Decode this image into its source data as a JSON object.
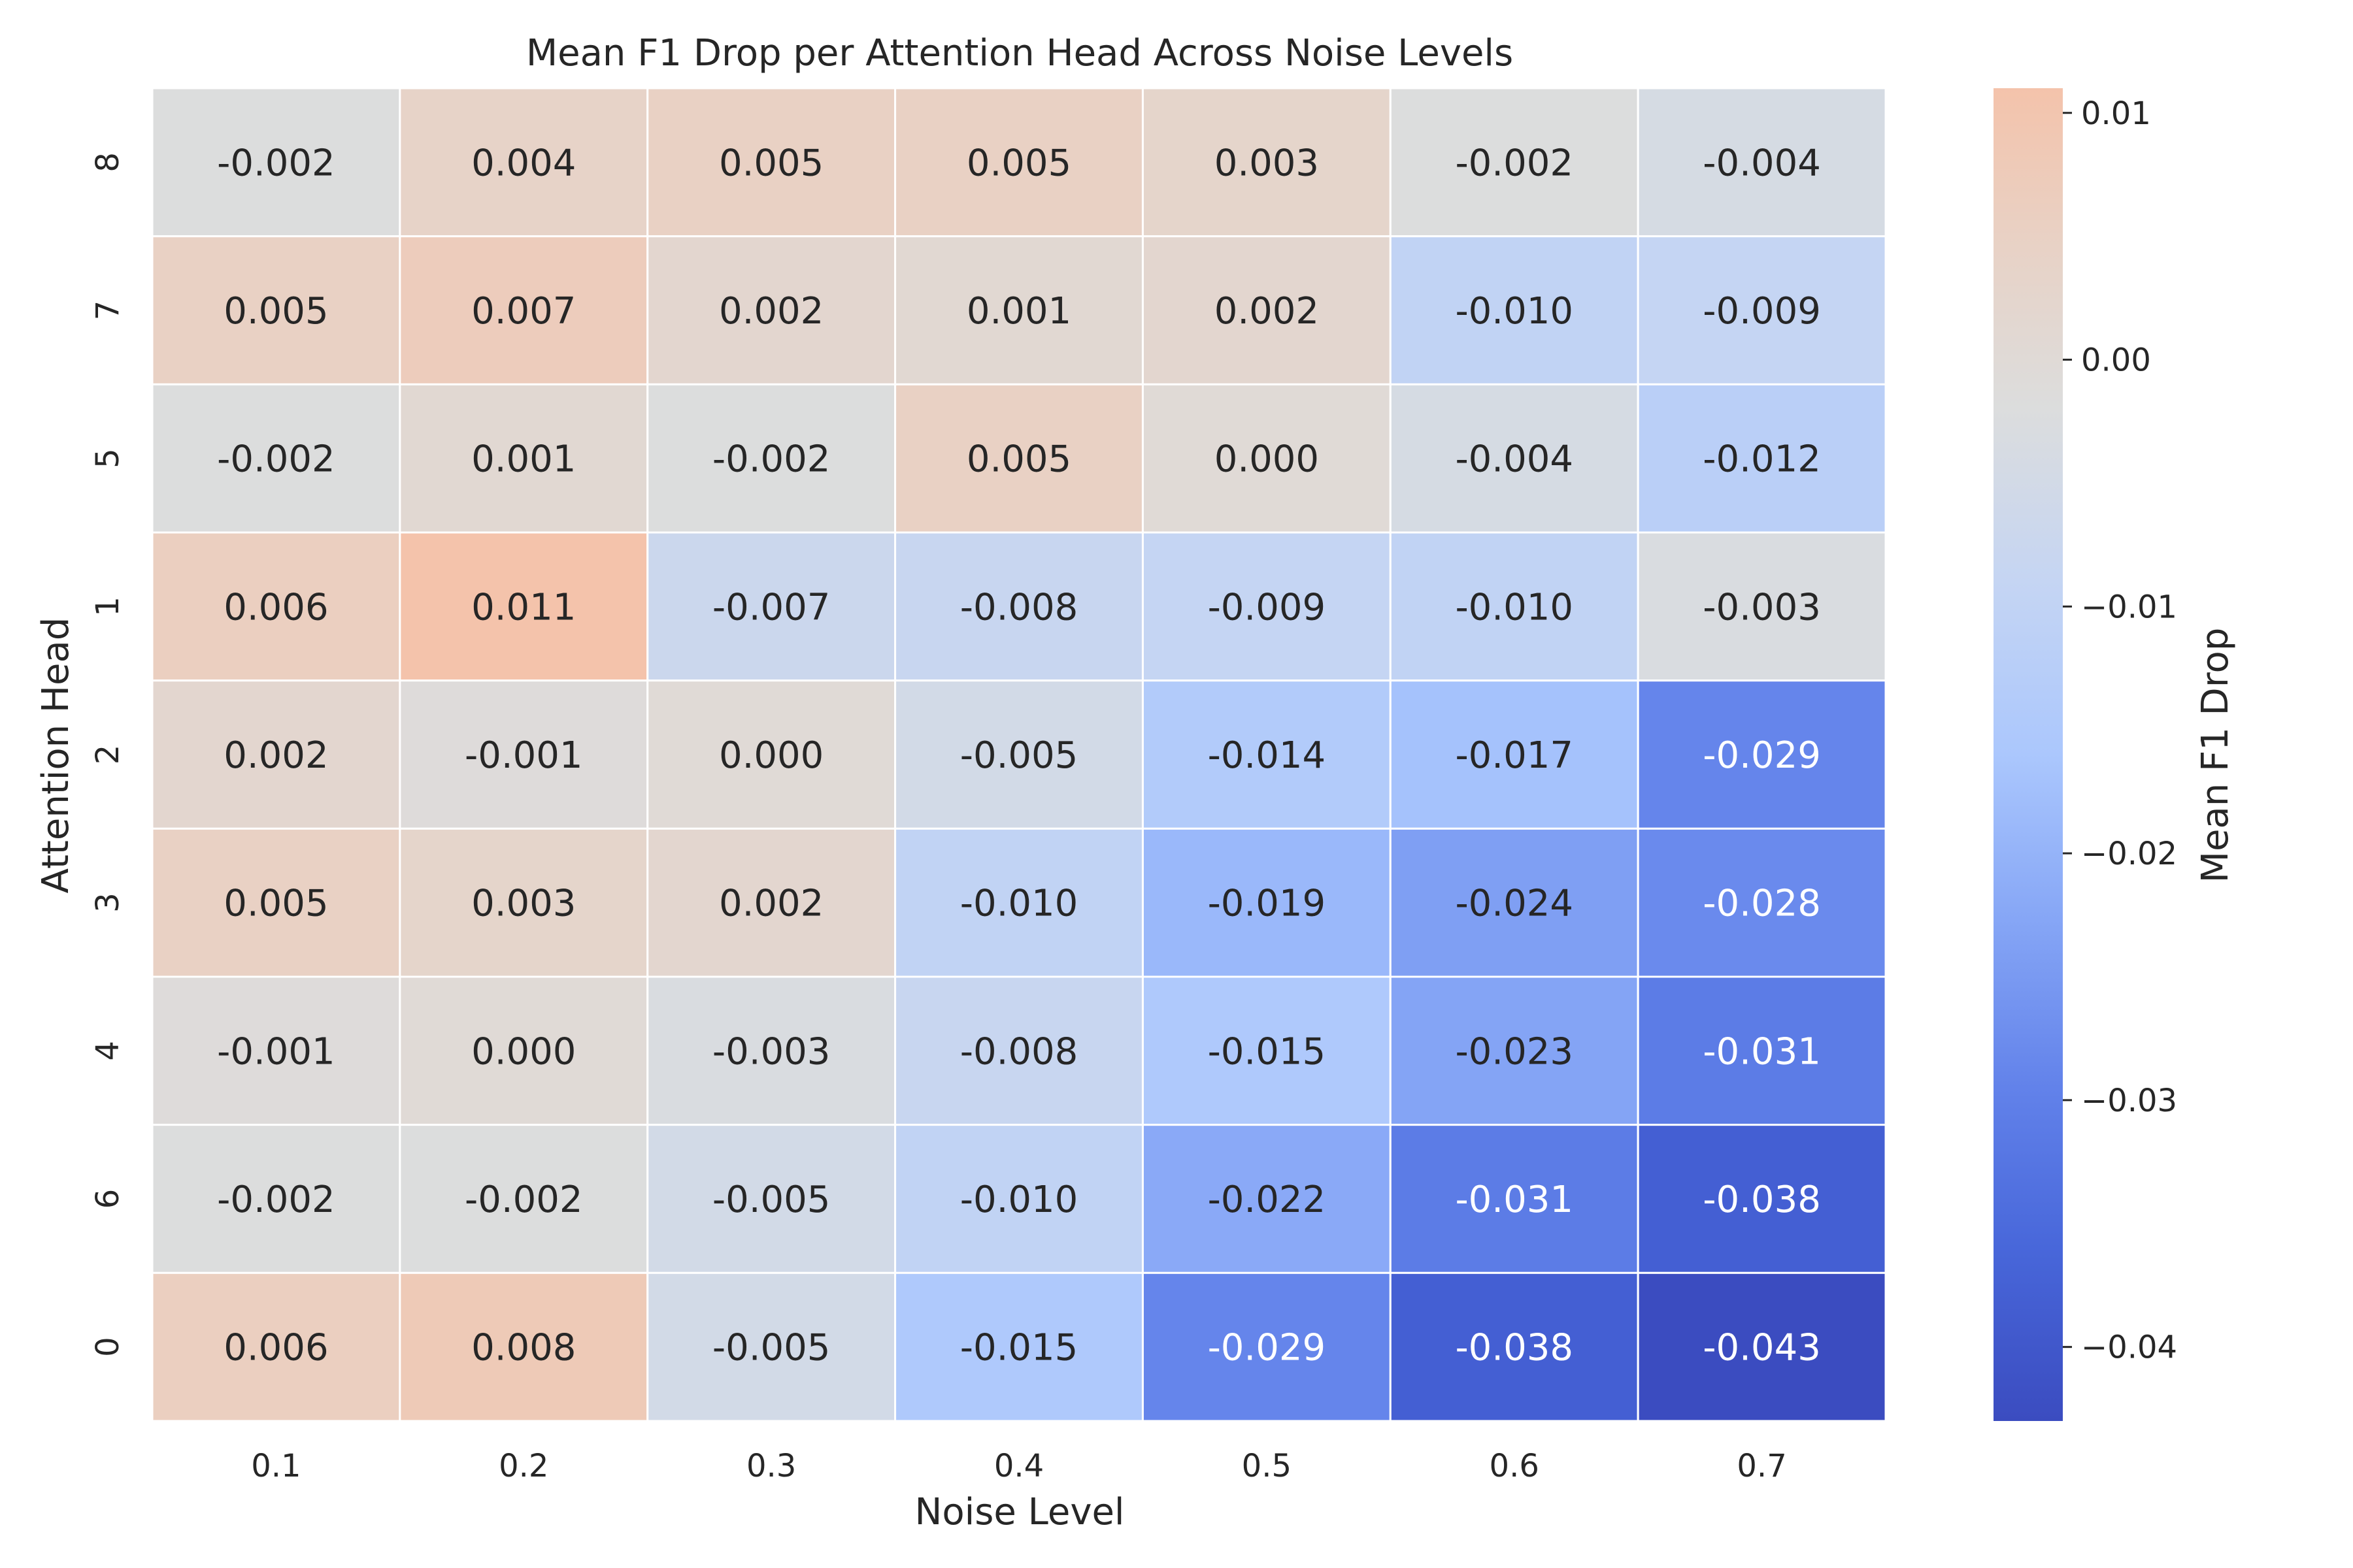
{
  "chart_data": {
    "type": "heatmap",
    "title": "Mean F1 Drop per Attention Head Across Noise Levels",
    "xlabel": "Noise Level",
    "ylabel": "Attention Head",
    "x_categories": [
      "0.1",
      "0.2",
      "0.3",
      "0.4",
      "0.5",
      "0.6",
      "0.7"
    ],
    "y_categories": [
      "8",
      "7",
      "5",
      "1",
      "2",
      "3",
      "4",
      "6",
      "0"
    ],
    "values": [
      [
        -0.002,
        0.004,
        0.005,
        0.005,
        0.003,
        -0.002,
        -0.004
      ],
      [
        0.005,
        0.007,
        0.002,
        0.001,
        0.002,
        -0.01,
        -0.009
      ],
      [
        -0.002,
        0.001,
        -0.002,
        0.005,
        0.0,
        -0.004,
        -0.012
      ],
      [
        0.006,
        0.011,
        -0.007,
        -0.008,
        -0.009,
        -0.01,
        -0.003
      ],
      [
        0.002,
        -0.001,
        0.0,
        -0.005,
        -0.014,
        -0.017,
        -0.029
      ],
      [
        0.005,
        0.003,
        0.002,
        -0.01,
        -0.019,
        -0.024,
        -0.028
      ],
      [
        -0.001,
        0.0,
        -0.003,
        -0.008,
        -0.015,
        -0.023,
        -0.031
      ],
      [
        -0.002,
        -0.002,
        -0.005,
        -0.01,
        -0.022,
        -0.031,
        -0.038
      ],
      [
        0.006,
        0.008,
        -0.005,
        -0.015,
        -0.029,
        -0.038,
        -0.043
      ]
    ],
    "value_labels": [
      [
        "-0.002",
        "0.004",
        "0.005",
        "0.005",
        "0.003",
        "-0.002",
        "-0.004"
      ],
      [
        "0.005",
        "0.007",
        "0.002",
        "0.001",
        "0.002",
        "-0.010",
        "-0.009"
      ],
      [
        "-0.002",
        "0.001",
        "-0.002",
        "0.005",
        "0.000",
        "-0.004",
        "-0.012"
      ],
      [
        "0.006",
        "0.011",
        "-0.007",
        "-0.008",
        "-0.009",
        "-0.010",
        "-0.003"
      ],
      [
        "0.002",
        "-0.001",
        "0.000",
        "-0.005",
        "-0.014",
        "-0.017",
        "-0.029"
      ],
      [
        "0.005",
        "0.003",
        "0.002",
        "-0.010",
        "-0.019",
        "-0.024",
        "-0.028"
      ],
      [
        "-0.001",
        "0.000",
        "-0.003",
        "-0.008",
        "-0.015",
        "-0.023",
        "-0.031"
      ],
      [
        "-0.002",
        "-0.002",
        "-0.005",
        "-0.010",
        "-0.022",
        "-0.031",
        "-0.038"
      ],
      [
        "0.006",
        "0.008",
        "-0.005",
        "-0.015",
        "-0.029",
        "-0.038",
        "-0.043"
      ]
    ],
    "colormap": "coolwarm",
    "center": 0.0,
    "vmin": -0.043,
    "vmax": 0.011,
    "colorbar": {
      "label": "Mean F1 Drop",
      "ticks": [
        0.01,
        0.0,
        -0.01,
        -0.02,
        -0.03,
        -0.04
      ],
      "tick_labels": [
        "0.01",
        "0.00",
        "−0.01",
        "−0.02",
        "−0.03",
        "−0.04"
      ],
      "placement": "right"
    },
    "grid": false
  }
}
